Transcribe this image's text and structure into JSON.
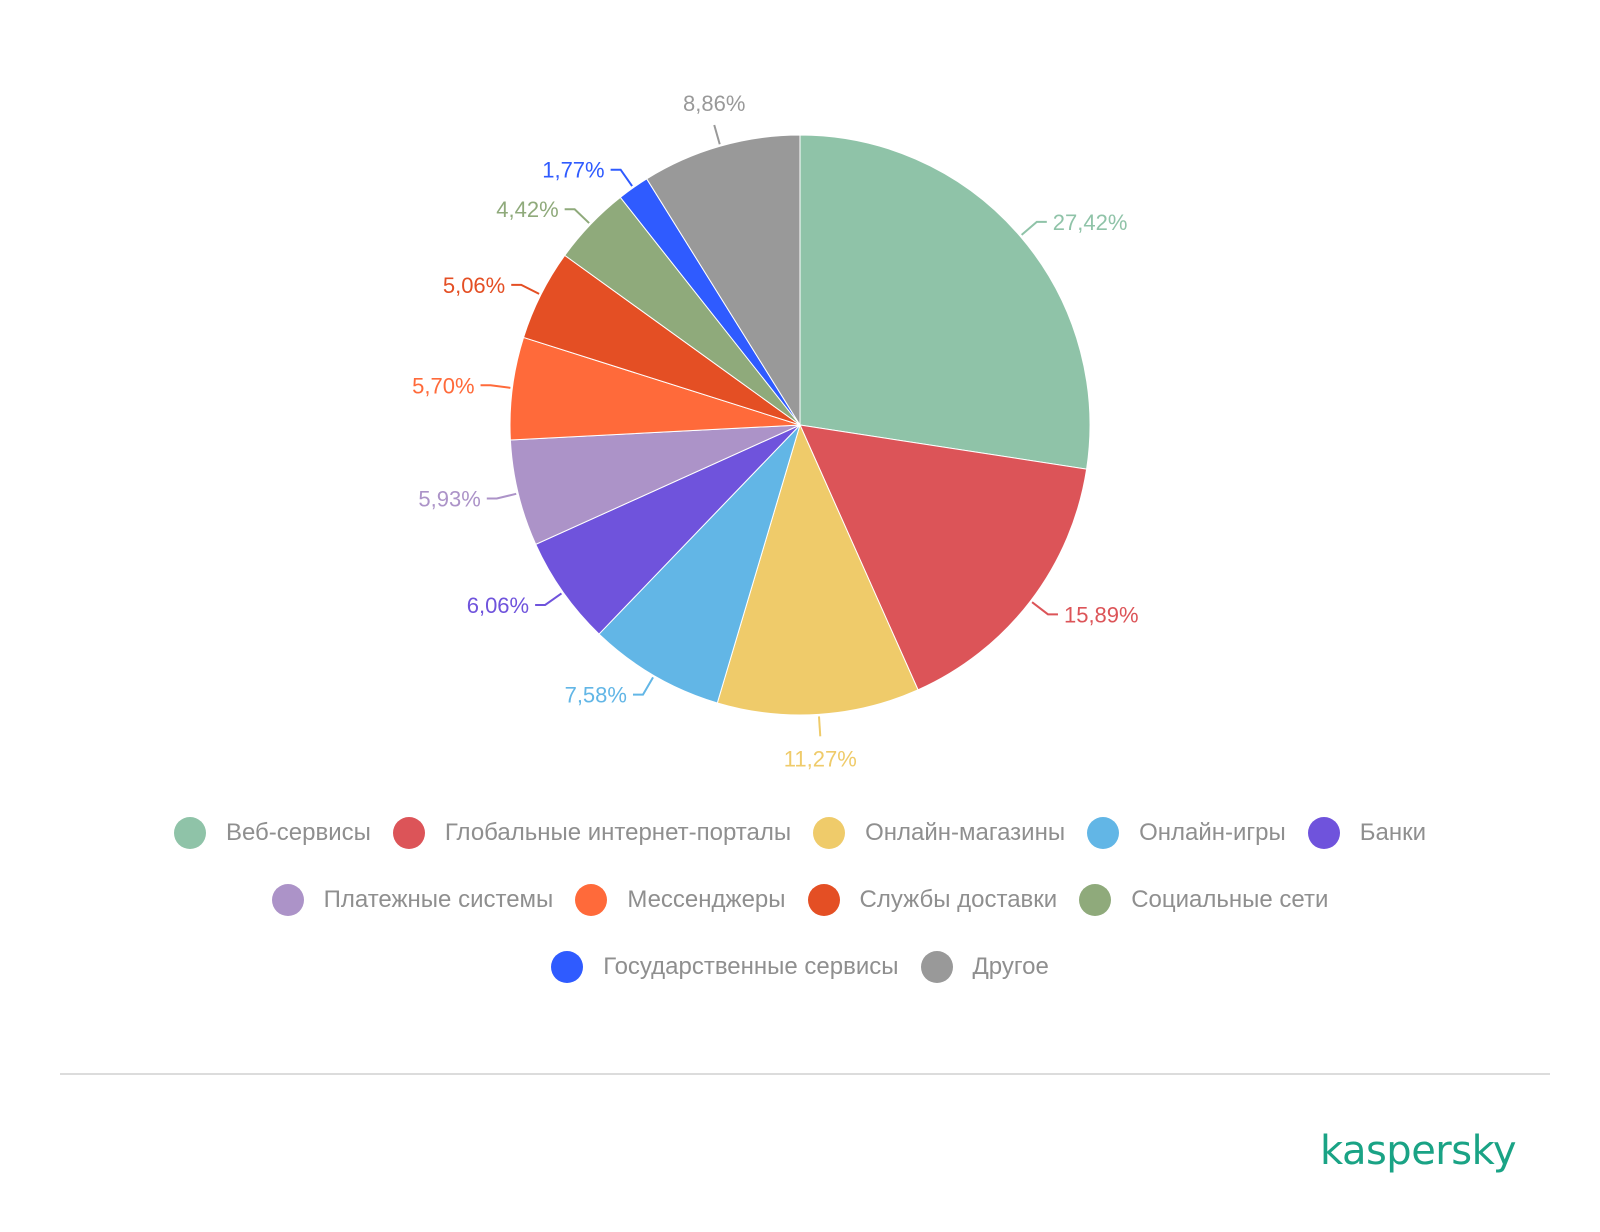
{
  "chart_data": {
    "type": "pie",
    "title": "",
    "start_angle_deg": 0,
    "direction": "clockwise",
    "slices": [
      {
        "label": "Веб-сервисы",
        "value": 27.42,
        "display": "27,42%",
        "color": "#8fc3a8"
      },
      {
        "label": "Глобальные интернет-порталы",
        "value": 15.89,
        "display": "15,89%",
        "color": "#dc5458"
      },
      {
        "label": "Онлайн-магазины",
        "value": 11.27,
        "display": "11,27%",
        "color": "#efcb6a"
      },
      {
        "label": "Онлайн-игры",
        "value": 7.58,
        "display": "7,58%",
        "color": "#62b6e6"
      },
      {
        "label": "Банки",
        "value": 6.06,
        "display": "6,06%",
        "color": "#6f53dc"
      },
      {
        "label": "Платежные системы",
        "value": 5.93,
        "display": "5,93%",
        "color": "#ac93c8"
      },
      {
        "label": "Мессенджеры",
        "value": 5.7,
        "display": "5,70%",
        "color": "#ff6a3a"
      },
      {
        "label": "Службы доставки",
        "value": 5.06,
        "display": "5,06%",
        "color": "#e44f24"
      },
      {
        "label": "Социальные сети",
        "value": 4.42,
        "display": "4,42%",
        "color": "#8faa7b"
      },
      {
        "label": "Государственные сервисы",
        "value": 1.77,
        "display": "1,77%",
        "color": "#2f5bff"
      },
      {
        "label": "Другое",
        "value": 8.86,
        "display": "8,86%",
        "color": "#999999"
      }
    ],
    "legend_position": "bottom"
  },
  "brand": {
    "logo_text": "kaspersky",
    "logo_color": "#1aa385"
  }
}
